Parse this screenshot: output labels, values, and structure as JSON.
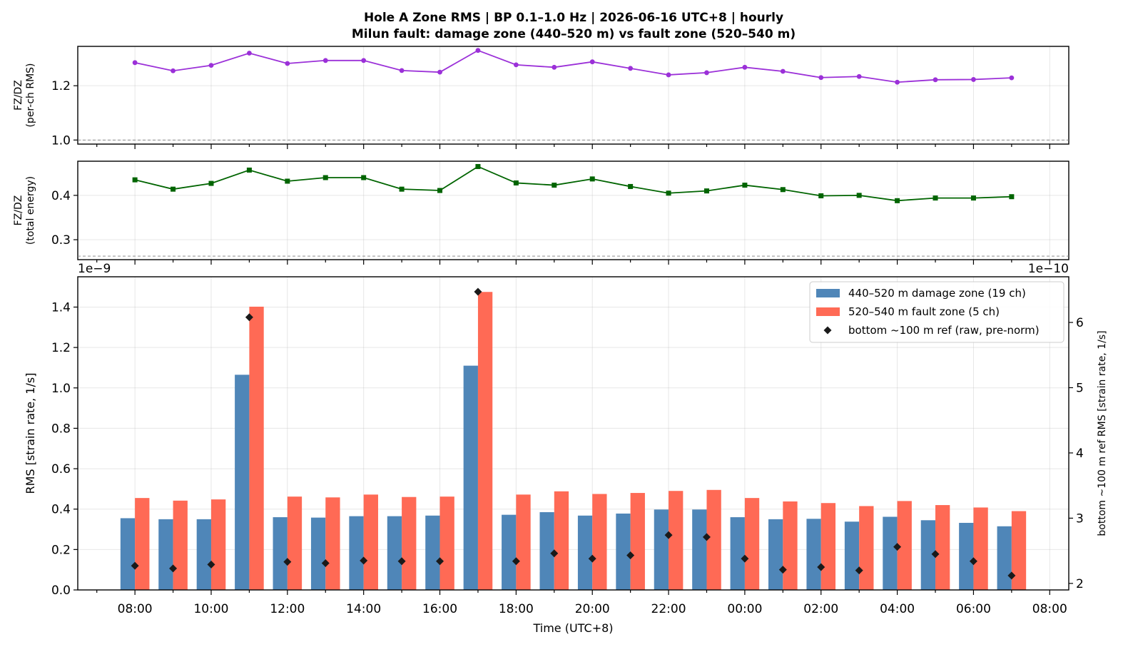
{
  "title_line1": "Hole A Zone RMS  |  BP 0.1–1.0 Hz  |  2026-06-16 UTC+8  |  hourly",
  "title_line2": "Milun fault: damage zone (440–520 m) vs fault zone (520–540 m)",
  "colors": {
    "ratio_rms": "#9b30d8",
    "ratio_energy": "#006400",
    "damage_zone": "#4f86b8",
    "fault_zone": "#ff6a55",
    "bottom_ref": "#1a1a1a"
  },
  "chart_data": [
    {
      "type": "line",
      "panel": "top",
      "ylabel": "FZ/DZ\n(per-ch RMS)",
      "ylim": [
        0.985,
        1.345
      ],
      "yticks": [
        1.0,
        1.2
      ],
      "reference_line": 1.0,
      "grid": true,
      "x": [
        0,
        1,
        2,
        3,
        4,
        5,
        6,
        7,
        8,
        9,
        10,
        11,
        12,
        13,
        14,
        15,
        16,
        17,
        18,
        19,
        20,
        21,
        22,
        23
      ],
      "values": [
        1.285,
        1.255,
        1.275,
        1.32,
        1.282,
        1.293,
        1.293,
        1.256,
        1.25,
        1.33,
        1.277,
        1.268,
        1.288,
        1.264,
        1.24,
        1.248,
        1.268,
        1.253,
        1.23,
        1.234,
        1.213,
        1.222,
        1.223,
        1.229
      ]
    },
    {
      "type": "line",
      "panel": "middle",
      "ylabel": "FZ/DZ\n(total energy)",
      "ylim": [
        0.255,
        0.477
      ],
      "yticks": [
        0.3,
        0.4
      ],
      "reference_line": 0.263,
      "grid": true,
      "x": [
        0,
        1,
        2,
        3,
        4,
        5,
        6,
        7,
        8,
        9,
        10,
        11,
        12,
        13,
        14,
        15,
        16,
        17,
        18,
        19,
        20,
        21,
        22,
        23
      ],
      "values": [
        0.435,
        0.414,
        0.427,
        0.457,
        0.432,
        0.44,
        0.44,
        0.414,
        0.411,
        0.465,
        0.428,
        0.423,
        0.437,
        0.42,
        0.405,
        0.41,
        0.423,
        0.413,
        0.399,
        0.4,
        0.388,
        0.394,
        0.394,
        0.397
      ]
    },
    {
      "type": "bar",
      "panel": "bottom",
      "xlabel": "Time (UTC+8)",
      "ylabel": "RMS  [strain rate, 1/s]",
      "y_offset_label": "1e−9",
      "ylim": [
        0,
        1.55
      ],
      "yticks": [
        0.0,
        0.2,
        0.4,
        0.6,
        0.8,
        1.0,
        1.2,
        1.4
      ],
      "ytick_labels": [
        "0.0",
        "0.2",
        "0.4",
        "0.6",
        "0.8",
        "1.0",
        "1.2",
        "1.4"
      ],
      "y2label": "bottom ~100 m ref RMS  [strain rate, 1/s]",
      "y2_offset_label": "1e−10",
      "y2lim": [
        1.9,
        6.7
      ],
      "y2ticks": [
        2,
        3,
        4,
        5,
        6
      ],
      "y2tick_labels": [
        "2",
        "3",
        "4",
        "5",
        "6"
      ],
      "x_tick_labels": [
        "08:00",
        "10:00",
        "12:00",
        "14:00",
        "16:00",
        "18:00",
        "20:00",
        "22:00",
        "00:00",
        "02:00",
        "04:00",
        "06:00",
        "08:00"
      ],
      "grid": true,
      "legend_position": "top-right",
      "series": [
        {
          "name": "440–520 m  damage zone (19 ch)",
          "kind": "bar",
          "values": [
            0.355,
            0.35,
            0.35,
            1.065,
            0.36,
            0.358,
            0.365,
            0.365,
            0.368,
            1.11,
            0.372,
            0.385,
            0.368,
            0.378,
            0.398,
            0.398,
            0.36,
            0.35,
            0.352,
            0.338,
            0.362,
            0.345,
            0.332,
            0.315
          ]
        },
        {
          "name": "520–540 m  fault zone (5 ch)",
          "kind": "bar",
          "values": [
            0.455,
            0.442,
            0.448,
            1.402,
            0.462,
            0.458,
            0.472,
            0.46,
            0.462,
            1.475,
            0.472,
            0.488,
            0.475,
            0.48,
            0.49,
            0.495,
            0.455,
            0.438,
            0.43,
            0.415,
            0.44,
            0.42,
            0.408,
            0.39
          ]
        },
        {
          "name": "bottom ~100 m ref (raw, pre-norm)",
          "kind": "scatter",
          "axis": "right",
          "values": [
            2.27,
            2.23,
            2.29,
            6.08,
            2.33,
            2.31,
            2.35,
            2.34,
            2.34,
            6.47,
            2.34,
            2.46,
            2.38,
            2.43,
            2.74,
            2.71,
            2.38,
            2.21,
            2.25,
            2.2,
            2.56,
            2.45,
            2.34,
            2.12
          ]
        }
      ]
    }
  ]
}
